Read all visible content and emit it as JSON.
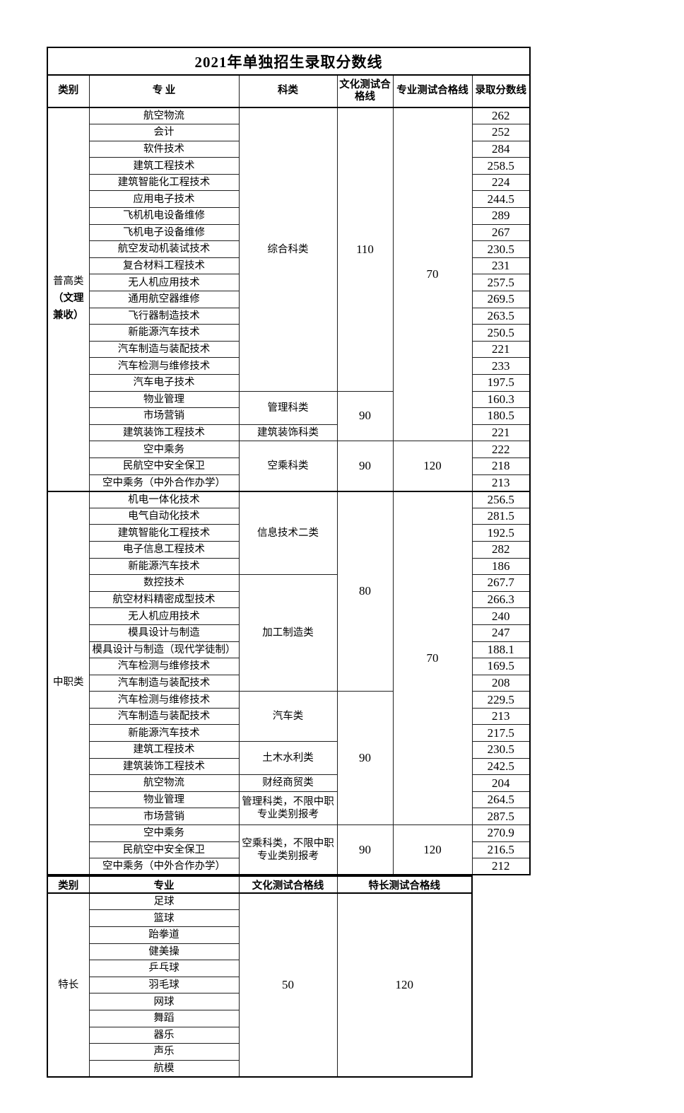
{
  "title": "2021年单独招生录取分数线",
  "colors": {
    "border": "#000000",
    "text": "#000000",
    "background": "#ffffff"
  },
  "table1": {
    "headers": [
      "类别",
      "专 业",
      "科类",
      "文化测试合格线",
      "专业测试合格线",
      "录取分数线"
    ],
    "sections": [
      {
        "category_lines": [
          {
            "text": "普高类",
            "bold": false
          },
          {
            "text": "（文理",
            "bold": true
          },
          {
            "text": "兼收）",
            "bold": true
          }
        ],
        "rows": [
          {
            "major": "航空物流",
            "score": "262",
            "subject": {
              "text": "综合科类",
              "span": 17
            },
            "culture": {
              "text": "110",
              "span": 17
            },
            "major_test": {
              "text": "70",
              "span": 20
            }
          },
          {
            "major": "会计",
            "score": "252"
          },
          {
            "major": "软件技术",
            "score": "284"
          },
          {
            "major": "建筑工程技术",
            "score": "258.5"
          },
          {
            "major": "建筑智能化工程技术",
            "score": "224"
          },
          {
            "major": "应用电子技术",
            "score": "244.5"
          },
          {
            "major": "飞机机电设备维修",
            "score": "289"
          },
          {
            "major": "飞机电子设备维修",
            "score": "267"
          },
          {
            "major": "航空发动机装试技术",
            "score": "230.5"
          },
          {
            "major": "复合材料工程技术",
            "score": "231"
          },
          {
            "major": "无人机应用技术",
            "score": "257.5"
          },
          {
            "major": "通用航空器维修",
            "score": "269.5"
          },
          {
            "major": "飞行器制造技术",
            "score": "263.5"
          },
          {
            "major": "新能源汽车技术",
            "score": "250.5"
          },
          {
            "major": "汽车制造与装配技术",
            "score": "221"
          },
          {
            "major": "汽车检测与维修技术",
            "score": "233"
          },
          {
            "major": "汽车电子技术",
            "score": "197.5"
          },
          {
            "major": "物业管理",
            "score": "160.3",
            "subject": {
              "text": "管理科类",
              "span": 2
            },
            "culture": {
              "text": "90",
              "span": 3
            }
          },
          {
            "major": "市场营销",
            "score": "180.5"
          },
          {
            "major": "建筑装饰工程技术",
            "score": "221",
            "subject": {
              "text": "建筑装饰科类",
              "span": 1
            }
          },
          {
            "major": "空中乘务",
            "score": "222",
            "subject": {
              "text": "空乘科类",
              "span": 3
            },
            "culture": {
              "text": "90",
              "span": 3
            },
            "major_test": {
              "text": "120",
              "span": 3
            }
          },
          {
            "major": "民航空中安全保卫",
            "score": "218"
          },
          {
            "major": "空中乘务（中外合作办学）",
            "score": "213"
          }
        ]
      },
      {
        "category_lines": [
          {
            "text": "中职类",
            "bold": false
          }
        ],
        "rows": [
          {
            "major": "机电一体化技术",
            "score": "256.5",
            "subject": {
              "text": "信息技术二类",
              "span": 5
            },
            "culture": {
              "text": "80",
              "span": 12
            },
            "major_test": {
              "text": "70",
              "span": 20
            }
          },
          {
            "major": "电气自动化技术",
            "score": "281.5"
          },
          {
            "major": "建筑智能化工程技术",
            "score": "192.5"
          },
          {
            "major": "电子信息工程技术",
            "score": "282"
          },
          {
            "major": "新能源汽车技术",
            "score": "186"
          },
          {
            "major": "数控技术",
            "score": "267.7",
            "subject": {
              "text": "加工制造类",
              "span": 7
            }
          },
          {
            "major": "航空材料精密成型技术",
            "score": "266.3"
          },
          {
            "major": "无人机应用技术",
            "score": "240"
          },
          {
            "major": "模具设计与制造",
            "score": "247"
          },
          {
            "major": "模具设计与制造（现代学徒制）",
            "score": "188.1"
          },
          {
            "major": "汽车检测与维修技术",
            "score": "169.5"
          },
          {
            "major": "汽车制造与装配技术",
            "score": "208"
          },
          {
            "major": "汽车检测与维修技术",
            "score": "229.5",
            "subject": {
              "text": "汽车类",
              "span": 3
            },
            "culture": {
              "text": "90",
              "span": 8
            }
          },
          {
            "major": "汽车制造与装配技术",
            "score": "213"
          },
          {
            "major": "新能源汽车技术",
            "score": "217.5"
          },
          {
            "major": "建筑工程技术",
            "score": "230.5",
            "subject": {
              "text": "土木水利类",
              "span": 2
            }
          },
          {
            "major": "建筑装饰工程技术",
            "score": "242.5"
          },
          {
            "major": "航空物流",
            "score": "204",
            "subject": {
              "text": "财经商贸类",
              "span": 1
            }
          },
          {
            "major": "物业管理",
            "score": "264.5",
            "subject": {
              "text": "管理科类，不限中职专业类别报考",
              "span": 2
            }
          },
          {
            "major": "市场营销",
            "score": "287.5"
          },
          {
            "major": "空中乘务",
            "score": "270.9",
            "subject": {
              "text": "空乘科类，不限中职专业类别报考",
              "span": 3
            },
            "culture": {
              "text": "90",
              "span": 3
            },
            "major_test": {
              "text": "120",
              "span": 3
            }
          },
          {
            "major": "民航空中安全保卫",
            "score": "216.5"
          },
          {
            "major": "空中乘务（中外合作办学）",
            "score": "212"
          }
        ]
      }
    ]
  },
  "table2": {
    "headers": [
      "类别",
      "专业",
      "文化测试合格线",
      "特长测试合格线"
    ],
    "category": "特长",
    "majors": [
      "足球",
      "篮球",
      "跆拳道",
      "健美操",
      "乒乓球",
      "羽毛球",
      "网球",
      "舞蹈",
      "器乐",
      "声乐",
      "航模"
    ],
    "culture_line": "50",
    "talent_line": "120"
  }
}
